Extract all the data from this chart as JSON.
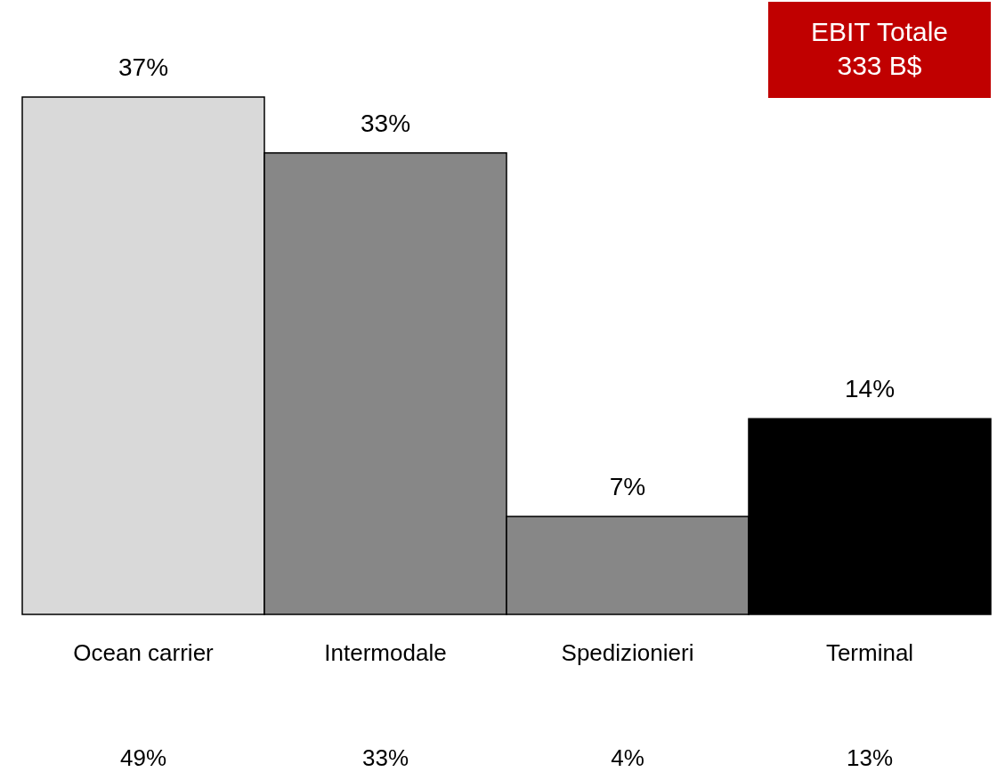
{
  "chart_data": {
    "type": "bar",
    "categories": [
      "Ocean carrier",
      "Intermodale",
      "Spedizionieri",
      "Terminal"
    ],
    "values": [
      37,
      33,
      7,
      14
    ],
    "colors": [
      "#d9d9d9",
      "#878787",
      "#878787",
      "#000000"
    ],
    "value_labels": [
      "37%",
      "33%",
      "7%",
      "14%"
    ],
    "annotations": [
      "EBIT Totale\n333 B$",
      "49%",
      "33%",
      "4%",
      "13%"
    ]
  }
}
